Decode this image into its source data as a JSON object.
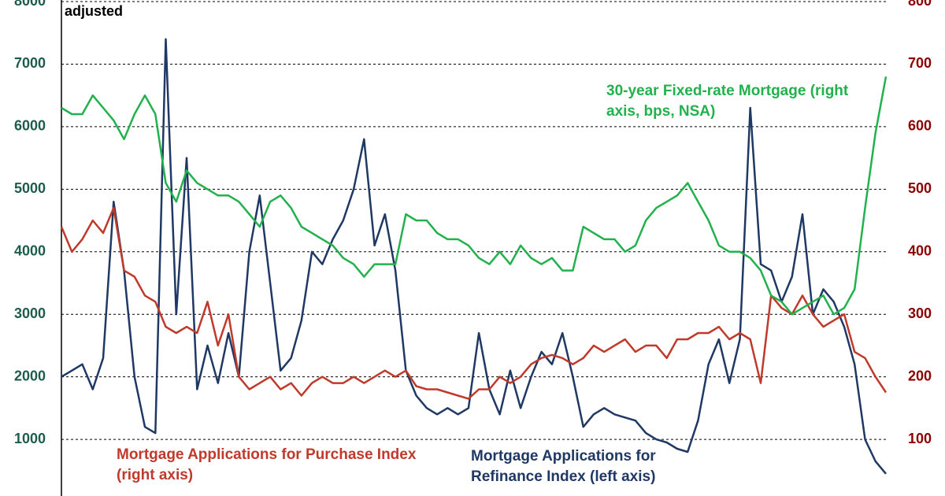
{
  "chart_data": {
    "type": "line",
    "title": "adjusted",
    "ylim": [
      0,
      8000
    ],
    "yticks": [
      1000,
      2000,
      3000,
      4000,
      5000,
      6000,
      7000,
      8000
    ],
    "y2lim": [
      0,
      800
    ],
    "y2ticks": [
      100,
      200,
      300,
      400,
      500,
      600,
      700,
      800
    ],
    "grid": true,
    "series": [
      {
        "name": "Mortgage Applications for Refinance Index (left axis)",
        "color": "#1f3864",
        "values": [
          2000,
          2100,
          2200,
          1800,
          2300,
          4800,
          3700,
          2000,
          1200,
          1100,
          7400,
          3000,
          5500,
          1800,
          2500,
          1900,
          2700,
          2000,
          4000,
          4900,
          3500,
          2100,
          2300,
          2900,
          4000,
          3800,
          4200,
          4500,
          5000,
          5800,
          4100,
          4600,
          3700,
          2100,
          1700,
          1500,
          1400,
          1500,
          1400,
          1500,
          2700,
          1800,
          1400,
          2100,
          1500,
          2000,
          2400,
          2200,
          2700,
          2000,
          1200,
          1400,
          1500,
          1400,
          1350,
          1300,
          1100,
          1000,
          950,
          850,
          800,
          1300,
          2200,
          2600,
          1900,
          2600,
          6300,
          3800,
          3700,
          3200,
          3600,
          4600,
          3000,
          3400,
          3200,
          2800,
          2200,
          1000,
          650,
          450
        ]
      },
      {
        "name": "Mortgage Applications for Purchase Index (right axis)",
        "color": "#c0392b",
        "axis": "y2",
        "values": [
          440,
          400,
          420,
          450,
          430,
          470,
          370,
          360,
          330,
          320,
          280,
          270,
          280,
          270,
          320,
          250,
          300,
          200,
          180,
          190,
          200,
          180,
          190,
          170,
          190,
          200,
          190,
          190,
          200,
          190,
          200,
          210,
          200,
          210,
          185,
          180,
          180,
          175,
          170,
          165,
          180,
          180,
          200,
          190,
          200,
          220,
          230,
          235,
          230,
          220,
          230,
          250,
          240,
          250,
          260,
          240,
          250,
          250,
          230,
          260,
          260,
          270,
          270,
          280,
          260,
          270,
          260,
          190,
          330,
          310,
          300,
          330,
          300,
          280,
          290,
          300,
          240,
          230,
          200,
          175
        ]
      },
      {
        "name": "30-year Fixed-rate Mortgage (right axis, bps, NSA)",
        "color": "#22b14c",
        "axis": "y2",
        "values": [
          630,
          620,
          620,
          650,
          630,
          610,
          580,
          620,
          650,
          620,
          510,
          480,
          530,
          510,
          500,
          490,
          490,
          480,
          460,
          440,
          480,
          490,
          470,
          440,
          430,
          420,
          410,
          390,
          380,
          360,
          380,
          380,
          380,
          460,
          450,
          450,
          430,
          420,
          420,
          410,
          390,
          380,
          400,
          380,
          410,
          390,
          380,
          390,
          370,
          370,
          440,
          430,
          420,
          420,
          400,
          410,
          450,
          470,
          480,
          490,
          510,
          480,
          450,
          410,
          400,
          400,
          390,
          370,
          330,
          320,
          300,
          310,
          320,
          330,
          300,
          310,
          340,
          470,
          590,
          680
        ]
      }
    ]
  }
}
